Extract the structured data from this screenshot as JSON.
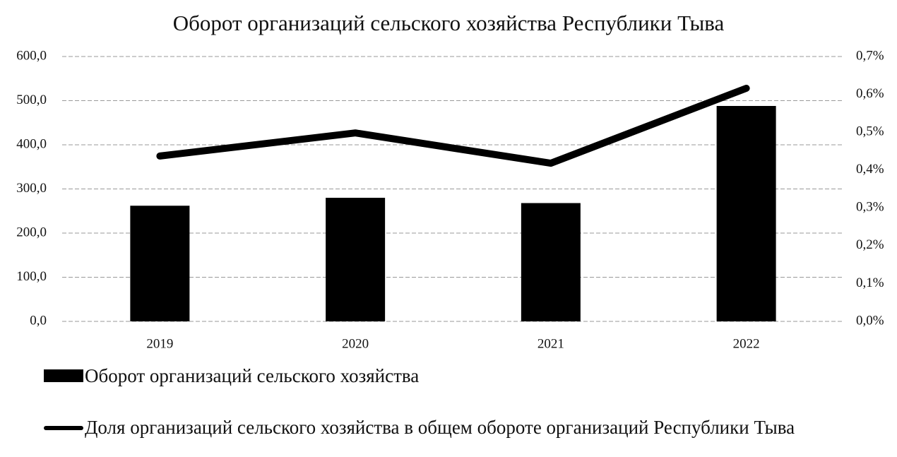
{
  "chart_data": {
    "type": "bar_line",
    "title": "Оборот организаций сельского хозяйства Республики Тыва",
    "categories": [
      "2019",
      "2020",
      "2021",
      "2022"
    ],
    "series": [
      {
        "name": "Оборот организаций сельского хозяйства",
        "type": "bar",
        "color": "#000000",
        "values": [
          262,
          280,
          268,
          488
        ]
      },
      {
        "name": "Доля организаций сельского хозяйства в общем обороте организаций Республики Тыва",
        "type": "line",
        "axis": "y2",
        "color": "#000000",
        "values": [
          0.437,
          0.498,
          0.418,
          0.616
        ]
      }
    ],
    "ylim": [
      0,
      600
    ],
    "yticks": [
      {
        "value": 0,
        "label": "0,0"
      },
      {
        "value": 100,
        "label": "100,0"
      },
      {
        "value": 200,
        "label": "200,0"
      },
      {
        "value": 300,
        "label": "300,0"
      },
      {
        "value": 400,
        "label": "400,0"
      },
      {
        "value": 500,
        "label": "500,0"
      },
      {
        "value": 600,
        "label": "600,0"
      }
    ],
    "y2lim": [
      0,
      0.7
    ],
    "y2ticks": [
      {
        "value": 0,
        "label": "0,0%"
      },
      {
        "value": 0.1,
        "label": "0,1%"
      },
      {
        "value": 0.2,
        "label": "0,2%"
      },
      {
        "value": 0.3,
        "label": "0,3%"
      },
      {
        "value": 0.4,
        "label": "0,4%"
      },
      {
        "value": 0.5,
        "label": "0,5%"
      },
      {
        "value": 0.6,
        "label": "0,6%"
      },
      {
        "value": 0.7,
        "label": "0,7%"
      }
    ],
    "grid": true
  }
}
